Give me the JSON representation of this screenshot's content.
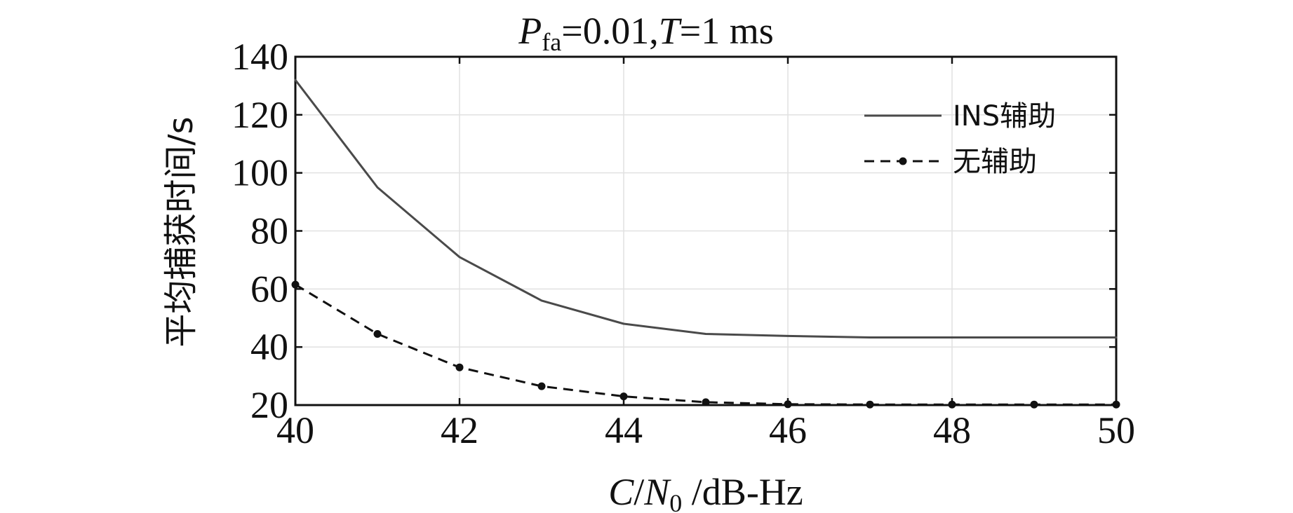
{
  "chart_data": {
    "type": "line",
    "title": {
      "p_symbol": "P",
      "p_subscript": "fa",
      "eq_one": "=0.01,",
      "t_symbol": "T",
      "eq_two": "=1 ms"
    },
    "xlabel": {
      "c_symbol": "C",
      "slash": "/",
      "n_symbol": "N",
      "n_subscript": "0",
      "unit": " /dB-Hz"
    },
    "ylabel": "平均捕获时间/s",
    "xlim": [
      40,
      50
    ],
    "ylim": [
      20,
      140
    ],
    "xticks": [
      "40",
      "42",
      "44",
      "46",
      "48",
      "50"
    ],
    "yticks": [
      "20",
      "40",
      "60",
      "80",
      "100",
      "120",
      "140"
    ],
    "grid": true,
    "legend_position": "top-right",
    "series": [
      {
        "name": "INS辅助",
        "style": "solid",
        "color": "#4a4a4a",
        "x": [
          40,
          41,
          42,
          43,
          44,
          45,
          46,
          47,
          48,
          49,
          50
        ],
        "values": [
          132,
          95,
          71,
          56,
          48,
          44.5,
          43.8,
          43.3,
          43.3,
          43.3,
          43.3
        ]
      },
      {
        "name": "无辅助",
        "style": "dashed",
        "marker": "circle",
        "color": "#111111",
        "x": [
          40,
          41,
          42,
          43,
          44,
          45,
          46,
          47,
          48,
          49,
          50
        ],
        "values": [
          61.5,
          44.5,
          33,
          26.5,
          23,
          21,
          20.3,
          20.2,
          20.2,
          20.2,
          20.2
        ]
      }
    ]
  }
}
